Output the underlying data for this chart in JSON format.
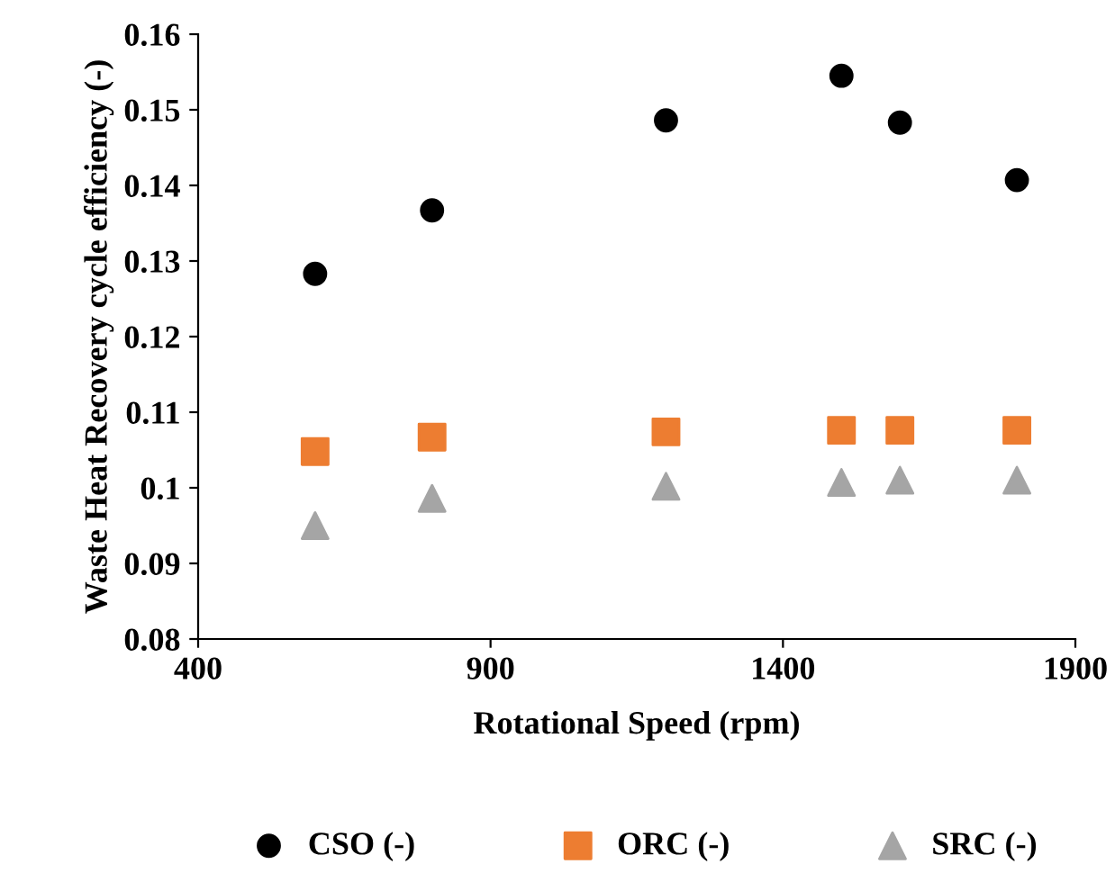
{
  "chart_data": {
    "type": "scatter",
    "xlabel": "Rotational Speed (rpm)",
    "ylabel": "Waste Heat Recovery cycle efficiency (-)",
    "x": [
      600,
      800,
      1200,
      1500,
      1600,
      1800
    ],
    "series": [
      {
        "name": "CSO (-)",
        "color": "#000000",
        "marker": "circle",
        "values": [
          0.1283,
          0.1367,
          0.1486,
          0.1545,
          0.1483,
          0.1407
        ]
      },
      {
        "name": "ORC (-)",
        "color": "#ed7d31",
        "marker": "square",
        "values": [
          0.1048,
          0.1067,
          0.1074,
          0.1076,
          0.1076,
          0.1076
        ]
      },
      {
        "name": "SRC (-)",
        "color": "#a5a5a5",
        "marker": "triangle",
        "values": [
          0.095,
          0.0986,
          0.1002,
          0.1007,
          0.101,
          0.101
        ]
      }
    ],
    "xlim": [
      400,
      1900
    ],
    "xticks": [
      400,
      900,
      1400,
      1900
    ],
    "ylim": [
      0.08,
      0.16
    ],
    "yticks": [
      0.08,
      0.09,
      {
        "value": 0.1,
        "label": "0.1"
      },
      0.11,
      0.12,
      0.13,
      0.14,
      0.15,
      0.16
    ],
    "grid": false,
    "legend": "bottom"
  }
}
